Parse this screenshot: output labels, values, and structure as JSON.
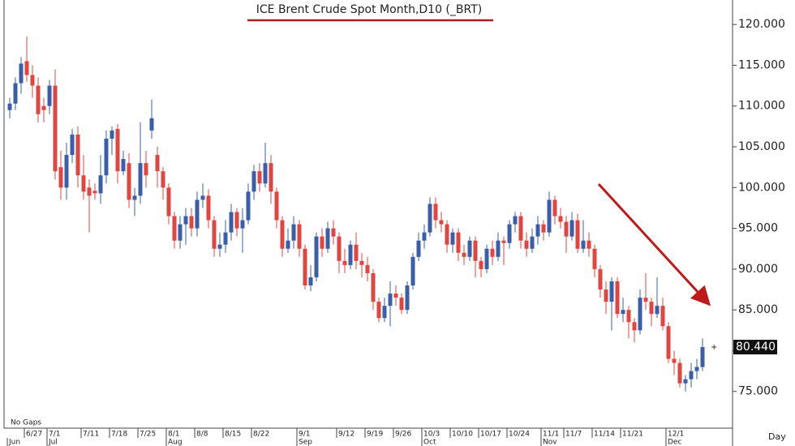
{
  "chart_data": {
    "type": "candlestick",
    "title": "ICE  Brent  Crude  Spot  Month,D10  (_BRT)",
    "note": "No  Gaps",
    "period_label": "Day",
    "last_label": "80.440",
    "up_color": "#3a5fa8",
    "down_color": "#e0463f",
    "ylim": [
      70.5,
      123
    ],
    "yticks": [
      {
        "value": 75,
        "label": "75.000"
      },
      {
        "value": 80,
        "label": "80.000"
      },
      {
        "value": 85,
        "label": "85.000"
      },
      {
        "value": 90,
        "label": "90.000"
      },
      {
        "value": 95,
        "label": "95.000"
      },
      {
        "value": 100,
        "label": "100.000"
      },
      {
        "value": 105,
        "label": "105.000"
      },
      {
        "value": 110,
        "label": "110.000"
      },
      {
        "value": 115,
        "label": "115.000"
      },
      {
        "value": 120,
        "label": "120.000"
      }
    ],
    "categories": [
      null,
      null,
      null,
      "6/27",
      null,
      null,
      null,
      "7/1",
      null,
      null,
      null,
      null,
      null,
      "7/11",
      null,
      null,
      null,
      null,
      "7/18",
      null,
      null,
      null,
      null,
      "7/25",
      null,
      null,
      null,
      null,
      "8/1",
      null,
      null,
      null,
      null,
      "8/8",
      null,
      null,
      null,
      null,
      "8/15",
      null,
      null,
      null,
      null,
      "8/22",
      null,
      null,
      null,
      null,
      null,
      null,
      null,
      "9/1",
      null,
      null,
      null,
      null,
      null,
      null,
      "9/12",
      null,
      null,
      null,
      null,
      "9/19",
      null,
      null,
      null,
      null,
      "9/26",
      null,
      null,
      null,
      null,
      "10/3",
      null,
      null,
      null,
      null,
      "10/10",
      null,
      null,
      null,
      null,
      "10/17",
      null,
      null,
      null,
      null,
      "10/24",
      null,
      null,
      null,
      null,
      null,
      "11/1",
      null,
      null,
      null,
      "11/7",
      null,
      null,
      null,
      null,
      "11/14",
      null,
      null,
      null,
      null,
      "11/21",
      null,
      null,
      null,
      null,
      null,
      null,
      null,
      "12/1",
      null,
      null,
      null,
      null,
      null,
      null
    ],
    "months": [
      "Jun",
      null,
      null,
      null,
      null,
      null,
      null,
      "Jul",
      null,
      null,
      null,
      null,
      null,
      null,
      null,
      null,
      null,
      null,
      null,
      null,
      null,
      null,
      null,
      null,
      null,
      null,
      null,
      null,
      "Aug",
      null,
      null,
      null,
      null,
      null,
      null,
      null,
      null,
      null,
      null,
      null,
      null,
      null,
      null,
      null,
      null,
      null,
      null,
      null,
      null,
      null,
      null,
      "Sep",
      null,
      null,
      null,
      null,
      null,
      null,
      null,
      null,
      null,
      null,
      null,
      null,
      null,
      null,
      null,
      null,
      null,
      null,
      null,
      null,
      null,
      "Oct",
      null,
      null,
      null,
      null,
      null,
      null,
      null,
      null,
      null,
      null,
      null,
      null,
      null,
      null,
      null,
      null,
      null,
      null,
      null,
      null,
      "Nov",
      null,
      null,
      null,
      null,
      null,
      null,
      null,
      null,
      null,
      null,
      null,
      null,
      null,
      null,
      null,
      null,
      null,
      null,
      null,
      null,
      null,
      "Dec",
      null,
      null,
      null,
      null,
      null,
      null
    ],
    "open": [
      109.5,
      110.3,
      112.8,
      115.5,
      113.8,
      112.5,
      110,
      110,
      112.5,
      102.5,
      100,
      104,
      106.5,
      101.5,
      100,
      99.6,
      99.3,
      101.5,
      106,
      107.2,
      102,
      103,
      98.5,
      99,
      103,
      107,
      104,
      102,
      100,
      96.5,
      93.5,
      95.5,
      96.5,
      95,
      98.5,
      99,
      96,
      92.5,
      93,
      94.5,
      97,
      95,
      96,
      99.5,
      102,
      100.5,
      103,
      99.5,
      96,
      92.5,
      93.5,
      95.5,
      92.5,
      88,
      89,
      94,
      92.5,
      95,
      94,
      91,
      90.5,
      93,
      91,
      90.5,
      89.5,
      86,
      84,
      85.5,
      87,
      86.5,
      85,
      88,
      91.5,
      93.5,
      94.5,
      98,
      96,
      95.5,
      93,
      94.5,
      92,
      91.5,
      93.5,
      91,
      90,
      92.5,
      91.5,
      93.5,
      93.2,
      95.5,
      96.5,
      93.5,
      92.5,
      94,
      95.5,
      94.5,
      98.5,
      96.5,
      95.8,
      94,
      96,
      92.5,
      93.5,
      92.5,
      90,
      87.5,
      86,
      88.5,
      84.5,
      85,
      83.5,
      82.5,
      86.5,
      86,
      84.5,
      85.5,
      83,
      79,
      78.5,
      76,
      76.5,
      77.5,
      78
    ],
    "high": [
      111,
      113.5,
      116,
      118.5,
      115,
      113.5,
      111,
      113.2,
      114.5,
      104.5,
      105.5,
      107.2,
      107.5,
      104,
      101,
      100.5,
      104,
      107,
      107.5,
      107.8,
      104.5,
      104.2,
      100,
      108,
      104.5,
      110.8,
      105,
      102.5,
      100.5,
      97,
      96.5,
      97.5,
      97.5,
      99.5,
      100.5,
      99.8,
      96.5,
      94.5,
      96,
      98,
      97.5,
      97.5,
      100.5,
      102.8,
      103,
      105.5,
      104,
      100,
      96.5,
      95,
      96.5,
      96,
      93,
      90.5,
      94.5,
      95,
      95.8,
      96,
      94.5,
      92.5,
      93.5,
      94.5,
      92,
      91.5,
      90,
      86.5,
      86.5,
      88.5,
      88,
      87,
      88.5,
      92,
      94.5,
      95.5,
      98.8,
      98.8,
      97,
      96,
      95,
      95,
      93,
      94,
      94,
      91.5,
      93,
      93.5,
      94.5,
      94,
      96,
      97,
      97,
      94.5,
      95,
      96.5,
      96,
      99.5,
      99,
      97.5,
      96.5,
      97,
      96.8,
      96,
      94.5,
      93,
      90.5,
      88.5,
      89,
      89,
      86.5,
      85.5,
      84,
      87.5,
      89.5,
      86.5,
      89,
      86.5,
      83.5,
      80,
      79,
      77,
      78.5,
      79,
      81.5
    ],
    "low": [
      108.5,
      109.5,
      111.5,
      113,
      111,
      108,
      108,
      109,
      101,
      98.5,
      98.5,
      103,
      100,
      98.5,
      94.5,
      98.5,
      98,
      100.5,
      104,
      100.5,
      101.5,
      97.5,
      96.5,
      98,
      100,
      106,
      100,
      98.5,
      95.5,
      92.5,
      92.5,
      93,
      94,
      94,
      97.5,
      95,
      91.5,
      91.5,
      92,
      93.5,
      94,
      92,
      95.5,
      98.5,
      99.5,
      100,
      98,
      95,
      91.5,
      92,
      92.5,
      91.5,
      87.5,
      87.3,
      88.5,
      91.5,
      92,
      93,
      89.5,
      89.5,
      90,
      90,
      89,
      88.5,
      85,
      83.5,
      83.5,
      83,
      85.5,
      84.5,
      84.5,
      87.5,
      91,
      92.5,
      94,
      95,
      94.5,
      92,
      92,
      91,
      90.5,
      91,
      89,
      89,
      89.5,
      90.5,
      91,
      90.5,
      92.5,
      94.5,
      92.5,
      91.5,
      92,
      93,
      93.5,
      94,
      95.5,
      95,
      92,
      93.5,
      92,
      92,
      91.5,
      89,
      86.5,
      84.5,
      82.5,
      84,
      83.5,
      81.5,
      81,
      82,
      85,
      83,
      84,
      82.5,
      78.5,
      77,
      75.5,
      75,
      75.5,
      76.5,
      77.5
    ],
    "close": [
      110.3,
      112.8,
      115.2,
      113.8,
      112.5,
      109,
      109.5,
      112.5,
      102,
      100,
      104,
      106.5,
      101.5,
      99.5,
      99,
      99.3,
      101.5,
      106,
      107,
      102,
      103.5,
      98.5,
      99,
      103,
      101.5,
      108.5,
      102,
      100,
      96.5,
      93.5,
      95.5,
      96.5,
      95,
      98.5,
      99,
      96,
      92.5,
      93,
      94.5,
      97,
      95,
      96,
      99.5,
      102,
      100.5,
      103,
      99.5,
      96,
      92.5,
      93.5,
      95.5,
      92.5,
      88,
      89,
      94,
      92.5,
      95,
      94,
      91,
      90.5,
      93,
      91,
      90.5,
      89.5,
      86,
      84,
      85.5,
      87,
      86.5,
      85,
      88,
      91.5,
      93.5,
      94.5,
      98,
      96,
      95.5,
      93,
      94.5,
      92,
      91.5,
      93.5,
      91,
      90,
      92.5,
      91.5,
      93.5,
      93.2,
      95.5,
      96.5,
      93.5,
      92.5,
      94,
      95.5,
      94.5,
      98.5,
      96.5,
      95.8,
      94,
      96,
      92.5,
      93.5,
      92.5,
      90,
      87.5,
      86,
      88.5,
      84.5,
      85,
      83.5,
      82.5,
      86.5,
      86,
      84.5,
      85.5,
      83,
      79,
      78.5,
      76,
      76.5,
      77.5,
      78,
      80.44
    ]
  }
}
